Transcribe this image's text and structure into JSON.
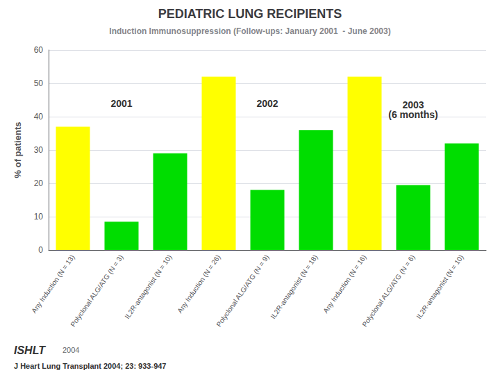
{
  "chart_data": {
    "type": "bar",
    "title": "PEDIATRIC LUNG RECIPIENTS",
    "subtitle": "Induction Immunosuppression (Follow-ups: January 2001  - June 2003)",
    "y_label": "% of patients",
    "categories": [
      "Any Induction (N = 13)",
      "Polyclonal ALG/ATG (N = 3)",
      "IL2R-antagonist (N = 10)",
      "Any Induction (N = 26)",
      "Polyclonal ALG/ATG (N = 9)",
      "IL2R-antagonist (N = 18)",
      "Any Induction (N = 16)",
      "Polyclonal ALG/ATG (N = 6)",
      "IL2R-antagonist (N = 10)"
    ],
    "values": [
      37,
      8.5,
      29,
      52,
      18,
      36,
      52,
      19.5,
      32
    ],
    "colors": [
      "#ffff00",
      "#00dd00",
      "#00dd00",
      "#ffff00",
      "#00dd00",
      "#00dd00",
      "#ffff00",
      "#00dd00",
      "#00dd00"
    ],
    "ylim": [
      0,
      60
    ],
    "yticks": [
      0,
      10,
      20,
      30,
      40,
      50,
      60
    ],
    "grid": true,
    "annotations": [
      {
        "text": "2001",
        "x": "Polyclonal ALG/ATG (N = 3)",
        "y": 44
      },
      {
        "text": "2002",
        "x": "Polyclonal ALG/ATG (N = 9)",
        "y": 44
      },
      {
        "text": "2003\n(6 months)",
        "x": "Polyclonal ALG/ATG (N = 6)",
        "y": 42
      }
    ],
    "footer": [
      "ISHLT",
      "2004",
      "J Heart Lung Transplant 2004; 23: 933-947"
    ]
  }
}
